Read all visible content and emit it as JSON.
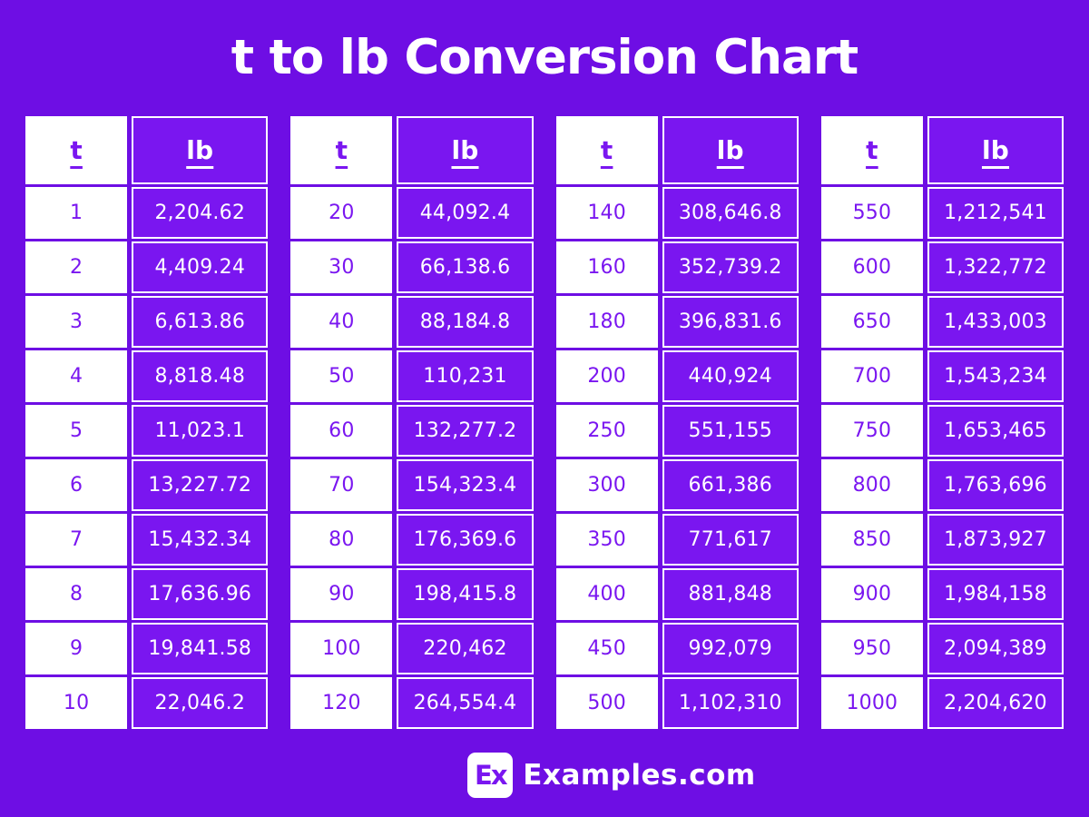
{
  "title": "t to lb Conversion Chart",
  "columns": {
    "t_label": "t",
    "lb_label": "lb"
  },
  "chart_data": {
    "type": "table",
    "title": "t to lb Conversion Chart",
    "columns": [
      "t",
      "lb"
    ],
    "unit_from": "t",
    "unit_to": "lb",
    "tables": [
      {
        "rows": [
          {
            "t": "1",
            "lb": "2,204.62"
          },
          {
            "t": "2",
            "lb": "4,409.24"
          },
          {
            "t": "3",
            "lb": "6,613.86"
          },
          {
            "t": "4",
            "lb": "8,818.48"
          },
          {
            "t": "5",
            "lb": "11,023.1"
          },
          {
            "t": "6",
            "lb": "13,227.72"
          },
          {
            "t": "7",
            "lb": "15,432.34"
          },
          {
            "t": "8",
            "lb": "17,636.96"
          },
          {
            "t": "9",
            "lb": "19,841.58"
          },
          {
            "t": "10",
            "lb": "22,046.2"
          }
        ]
      },
      {
        "rows": [
          {
            "t": "20",
            "lb": "44,092.4"
          },
          {
            "t": "30",
            "lb": "66,138.6"
          },
          {
            "t": "40",
            "lb": "88,184.8"
          },
          {
            "t": "50",
            "lb": "110,231"
          },
          {
            "t": "60",
            "lb": "132,277.2"
          },
          {
            "t": "70",
            "lb": "154,323.4"
          },
          {
            "t": "80",
            "lb": "176,369.6"
          },
          {
            "t": "90",
            "lb": "198,415.8"
          },
          {
            "t": "100",
            "lb": "220,462"
          },
          {
            "t": "120",
            "lb": "264,554.4"
          }
        ]
      },
      {
        "rows": [
          {
            "t": "140",
            "lb": "308,646.8"
          },
          {
            "t": "160",
            "lb": "352,739.2"
          },
          {
            "t": "180",
            "lb": "396,831.6"
          },
          {
            "t": "200",
            "lb": "440,924"
          },
          {
            "t": "250",
            "lb": "551,155"
          },
          {
            "t": "300",
            "lb": "661,386"
          },
          {
            "t": "350",
            "lb": "771,617"
          },
          {
            "t": "400",
            "lb": "881,848"
          },
          {
            "t": "450",
            "lb": "992,079"
          },
          {
            "t": "500",
            "lb": "1,102,310"
          }
        ]
      },
      {
        "rows": [
          {
            "t": "550",
            "lb": "1,212,541"
          },
          {
            "t": "600",
            "lb": "1,322,772"
          },
          {
            "t": "650",
            "lb": "1,433,003"
          },
          {
            "t": "700",
            "lb": "1,543,234"
          },
          {
            "t": "750",
            "lb": "1,653,465"
          },
          {
            "t": "800",
            "lb": "1,763,696"
          },
          {
            "t": "850",
            "lb": "1,873,927"
          },
          {
            "t": "900",
            "lb": "1,984,158"
          },
          {
            "t": "950",
            "lb": "2,094,389"
          },
          {
            "t": "1000",
            "lb": "2,204,620"
          }
        ]
      }
    ]
  },
  "footer": {
    "logo_text": "Ex",
    "site_name": "Examples.com"
  },
  "colors": {
    "background": "#6E0EE4",
    "cell_purple": "#7A16F0",
    "text_on_purple": "#FFFFFF",
    "text_on_white": "#7A16F0"
  }
}
